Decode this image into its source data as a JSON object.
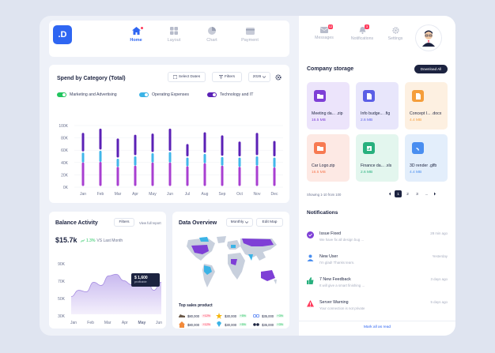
{
  "logo": ".D",
  "nav": {
    "items": [
      {
        "label": "Home",
        "icon": "home-icon",
        "active": true
      },
      {
        "label": "Layout",
        "icon": "layout-icon",
        "active": false
      },
      {
        "label": "Chart",
        "icon": "pie-chart-icon",
        "active": false
      },
      {
        "label": "Payment",
        "icon": "wallet-icon",
        "active": false
      }
    ]
  },
  "spend": {
    "title": "Spend by Category (Total)",
    "select_dates": "Select Dates",
    "filters": "Filters",
    "year": "2026",
    "legend": [
      {
        "name": "Marketing and Advertising",
        "color": "#22c55e"
      },
      {
        "name": "Operating Expenses",
        "color": "#3bb3e6"
      },
      {
        "name": "Technology and IT",
        "color": "#5b21b6"
      }
    ]
  },
  "chart_data": {
    "type": "bar",
    "categories": [
      "Jan",
      "Feb",
      "Mar",
      "Apr",
      "May",
      "Jun",
      "Jul",
      "Aug",
      "Sep",
      "Oct",
      "Nov",
      "Dec"
    ],
    "y_ticks": [
      "100K",
      "80K",
      "60K",
      "40K",
      "20K",
      "0K"
    ],
    "ylim": [
      0,
      100000
    ],
    "series": [
      {
        "name": "Marketing and Advertising",
        "color": "#a83fd1",
        "values": [
          40000,
          41000,
          33000,
          35000,
          40000,
          40000,
          34000,
          39000,
          35000,
          33000,
          35000,
          32000
        ]
      },
      {
        "name": "Operating Expenses",
        "color": "#41b6ea",
        "values": [
          18000,
          20000,
          15000,
          17000,
          17000,
          19000,
          16000,
          17000,
          16000,
          17000,
          17000,
          18000
        ]
      },
      {
        "name": "Technology and IT",
        "color": "#5b21b6",
        "values": [
          32000,
          36000,
          33000,
          35000,
          32000,
          38000,
          22000,
          35000,
          35000,
          26000,
          38000,
          27000
        ]
      }
    ]
  },
  "balance": {
    "title": "Balance Activity",
    "filters": "Filters",
    "view_full": "View full report",
    "amount": "$15.7k",
    "change": "1.3%",
    "vs": "VS Last Month",
    "tooltip_value": "$ 1,600",
    "tooltip_label": "profitable",
    "y_ticks": [
      "90K",
      "70K",
      "50K",
      "30K"
    ],
    "months": [
      "Jan",
      "Feb",
      "Mar",
      "Apr",
      "May",
      "Jun"
    ],
    "active_month": "May"
  },
  "balance_data": {
    "type": "area",
    "x": [
      0,
      1,
      2,
      3,
      4,
      5,
      6,
      7,
      8,
      9,
      10,
      11,
      12
    ],
    "y": [
      52000,
      60000,
      58000,
      70000,
      66000,
      78000,
      80000,
      72000,
      67000,
      80000,
      74000,
      60000,
      70000
    ],
    "ylim": [
      30000,
      95000
    ]
  },
  "overview": {
    "title": "Data Overview",
    "period": "Monthly",
    "edit": "Edit Map",
    "top_sales": "Top sales product",
    "products": [
      {
        "icon": "shoe-icon",
        "price": "$80,000",
        "badge": "+12%",
        "badge_color": "#ff3b5c"
      },
      {
        "icon": "star-icon",
        "price": "$30,000",
        "badge": "+5%",
        "badge_color": "#22c55e"
      },
      {
        "icon": "glasses-icon",
        "price": "$35,000",
        "badge": "+3%",
        "badge_color": "#22c55e"
      },
      {
        "icon": "house-icon",
        "price": "$80,000",
        "badge": "+12%",
        "badge_color": "#ff3b5c"
      },
      {
        "icon": "diamond-icon",
        "price": "$30,000",
        "badge": "+5%",
        "badge_color": "#22c55e"
      },
      {
        "icon": "sunglasses-icon",
        "price": "$35,000",
        "badge": "+3%",
        "badge_color": "#22c55e"
      }
    ]
  },
  "right": {
    "messages": "Messages",
    "messages_count": "12",
    "notifications": "Notifications",
    "notifications_count": "3",
    "settings": "Settings",
    "storage_title": "Company storage",
    "download_all": "Download All",
    "files": [
      {
        "name": "Meeting da... .zip",
        "size": "16.5 MB",
        "bg": "#ece4fb",
        "icon_bg": "#7e3fd6",
        "size_color": "#7e3fd6"
      },
      {
        "name": "Info budge... .fig",
        "size": "2.6 MB",
        "bg": "#e8e6fb",
        "icon_bg": "#5b5fe6",
        "size_color": "#5b5fe6"
      },
      {
        "name": "Concept I... .docx",
        "size": "4.4 MB",
        "bg": "#fdf0e1",
        "icon_bg": "#f59e3b",
        "size_color": "#f59e3b"
      },
      {
        "name": "Car Logo.zip",
        "size": "16.5 MB",
        "bg": "#fde9e4",
        "icon_bg": "#f77a52",
        "size_color": "#f77a52"
      },
      {
        "name": "Finance da... .xls",
        "size": "2.6 MB",
        "bg": "#e3f6ee",
        "icon_bg": "#28b07e",
        "size_color": "#28b07e"
      },
      {
        "name": "3D render .glfb",
        "size": "4.4 MB",
        "bg": "#e3eefb",
        "icon_bg": "#4a8ef0",
        "size_color": "#4a8ef0"
      }
    ],
    "showing": "Showing 1-10 from 100",
    "pages": [
      "1",
      "2",
      "3",
      "..."
    ],
    "notif_title": "Notifications",
    "notifications_list": [
      {
        "title": "Issue Fixed",
        "body": "We have fix all design bug ...",
        "time": "28 min ago",
        "icon": "check-circle-icon",
        "color": "#7e3fd6"
      },
      {
        "title": "New User",
        "body": "I'm glad! Thanks team.",
        "time": "Yesterday",
        "icon": "user-icon",
        "color": "#4a8ef0"
      },
      {
        "title": "7 New Feedback",
        "body": "It will give a smart finishing ...",
        "time": "3 days ago",
        "icon": "thumbs-up-icon",
        "color": "#28b07e"
      },
      {
        "title": "Server Warning",
        "body": "Your connection is not private",
        "time": "5 days ago",
        "icon": "warning-icon",
        "color": "#ff3b5c"
      }
    ],
    "mark_all": "Mark all as read"
  }
}
